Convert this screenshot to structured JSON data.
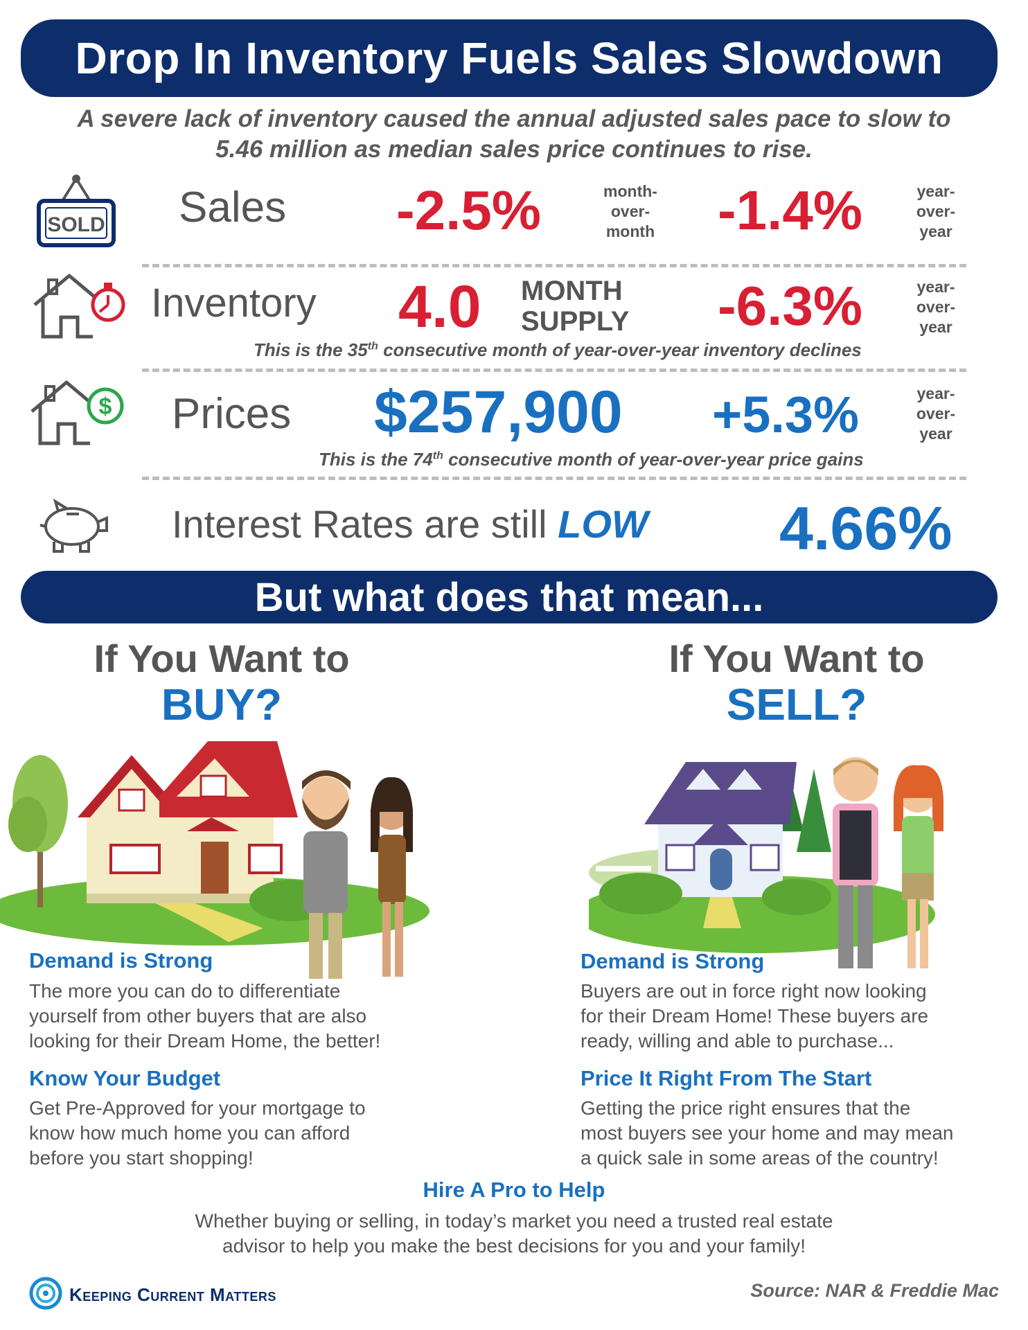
{
  "title": "Drop In Inventory Fuels Sales Slowdown",
  "subtitle": {
    "line1": "A severe lack of inventory caused the annual adjusted sales pace to slow to",
    "line2": "5.46 million as median sales price continues to rise."
  },
  "stats": {
    "sales": {
      "label": "Sales",
      "icon": "sold-sign-icon",
      "icon_text": "SOLD",
      "mom_value": "-2.5%",
      "mom_tag": [
        "month-",
        "over-",
        "month"
      ],
      "yoy_value": "-1.4%",
      "yoy_tag": [
        "year-",
        "over-",
        "year"
      ]
    },
    "inventory": {
      "label": "Inventory",
      "icon": "house-stopwatch-icon",
      "value": "4.0",
      "unit_line1": "MONTH",
      "unit_line2": "SUPPLY",
      "yoy_value": "-6.3%",
      "yoy_tag": [
        "year-",
        "over-",
        "year"
      ],
      "note_pre": "This is the 35",
      "note_sup": "th",
      "note_post": " consecutive month of year-over-year inventory declines"
    },
    "prices": {
      "label": "Prices",
      "icon": "house-dollar-icon",
      "value": "$257,900",
      "yoy_value": "+5.3%",
      "yoy_tag": [
        "year-",
        "over-",
        "year"
      ],
      "note_pre": "This is the 74",
      "note_sup": "th",
      "note_post": " consecutive month of year-over-year price gains"
    },
    "rates": {
      "label": "Interest Rates are still",
      "emphasis": "LOW",
      "icon": "piggy-bank-icon",
      "value": "4.66%"
    }
  },
  "mid_banner": "But what does that mean...",
  "buy": {
    "head_line1": "If You Want to",
    "head_line2": "BUY?",
    "sections": [
      {
        "heading": "Demand is Strong",
        "lines": [
          "The more you can do to differentiate",
          "yourself from other buyers that are also",
          "looking for their Dream Home, the better!"
        ]
      },
      {
        "heading": "Know Your Budget",
        "lines": [
          "Get Pre-Approved for your mortgage to",
          "know how much home you can afford",
          "before you start shopping!"
        ]
      }
    ]
  },
  "sell": {
    "head_line1": "If You Want to",
    "head_line2": "SELL?",
    "sections": [
      {
        "heading": "Demand is Strong",
        "lines": [
          "Buyers are out in force right now looking",
          "for their Dream Home! These buyers are",
          "ready, willing and able to purchase..."
        ]
      },
      {
        "heading": "Price It Right From The Start",
        "lines": [
          "Getting the price right ensures that the",
          "most buyers see your home and may mean",
          "a quick sale in some areas of the country!"
        ]
      }
    ]
  },
  "footer": {
    "heading": "Hire A Pro to Help",
    "line1": "Whether buying or selling, in today’s market you need a trusted real estate",
    "line2": "advisor to help you make the best decisions for you and your family!"
  },
  "brand": "Keeping Current Matters",
  "source": "Source: NAR & Freddie Mac",
  "colors": {
    "navy": "#0d2d6b",
    "red": "#d81f33",
    "blue": "#1a70c0",
    "gray": "#555555"
  }
}
